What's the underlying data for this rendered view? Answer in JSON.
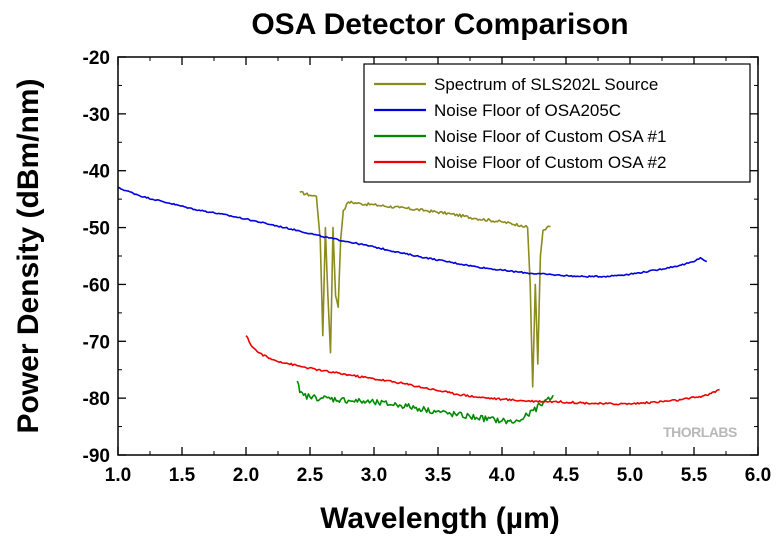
{
  "chart_data": {
    "type": "line",
    "title": "OSA Detector Comparison",
    "xlabel": "Wavelength (µm)",
    "ylabel": "Power Density (dBm/nm)",
    "xlim": [
      1.0,
      6.0
    ],
    "ylim": [
      -90,
      -20
    ],
    "xticks": [
      "1.0",
      "1.5",
      "2.0",
      "2.5",
      "3.0",
      "3.5",
      "4.0",
      "4.5",
      "5.0",
      "5.5",
      "6.0"
    ],
    "yticks": [
      "-20",
      "-30",
      "-40",
      "-50",
      "-60",
      "-70",
      "-80",
      "-90"
    ],
    "grid": false,
    "legend_position": "top-right",
    "watermark": "THORLABS",
    "series": [
      {
        "name": "Spectrum of SLS202L Source",
        "color": "#8b8b1e",
        "x": [
          2.42,
          2.5,
          2.55,
          2.58,
          2.6,
          2.62,
          2.64,
          2.66,
          2.68,
          2.7,
          2.72,
          2.74,
          2.76,
          2.8,
          2.9,
          3.0,
          3.2,
          3.4,
          3.6,
          3.8,
          4.0,
          4.15,
          4.2,
          4.22,
          4.24,
          4.26,
          4.28,
          4.3,
          4.32,
          4.35,
          4.38
        ],
        "y": [
          -43.8,
          -44.3,
          -44.5,
          -52,
          -69,
          -50,
          -62,
          -72,
          -50,
          -62,
          -64,
          -52,
          -47,
          -45.5,
          -45.8,
          -46,
          -46.5,
          -47,
          -47.6,
          -48.4,
          -49,
          -49.6,
          -50,
          -60,
          -78,
          -60,
          -74,
          -55,
          -50.5,
          -50,
          -49.8
        ]
      },
      {
        "name": "Noise Floor of OSA205C",
        "color": "#0000e0",
        "x": [
          1.0,
          1.2,
          1.4,
          1.6,
          1.8,
          2.0,
          2.2,
          2.4,
          2.6,
          2.8,
          3.0,
          3.2,
          3.4,
          3.6,
          3.8,
          4.0,
          4.2,
          4.4,
          4.6,
          4.8,
          5.0,
          5.2,
          5.4,
          5.5,
          5.55,
          5.6
        ],
        "y": [
          -43,
          -44.6,
          -45.7,
          -46.8,
          -47.6,
          -48.5,
          -49.5,
          -50.5,
          -51.6,
          -52.5,
          -53.4,
          -54.4,
          -55.3,
          -56.1,
          -56.9,
          -57.5,
          -58.0,
          -58.3,
          -58.6,
          -58.6,
          -58.2,
          -57.5,
          -56.6,
          -56.0,
          -55.3,
          -56.0
        ]
      },
      {
        "name": "Noise Floor of Custom OSA #1",
        "color": "#008a00",
        "x": [
          2.4,
          2.42,
          2.45,
          2.5,
          2.6,
          2.8,
          3.0,
          3.2,
          3.4,
          3.6,
          3.8,
          4.0,
          4.1,
          4.15,
          4.2,
          4.3,
          4.35,
          4.4
        ],
        "y": [
          -77,
          -79,
          -79.5,
          -79.8,
          -80,
          -80.4,
          -80.8,
          -81.2,
          -82,
          -82.8,
          -83.4,
          -84,
          -84.2,
          -83.8,
          -83,
          -81.2,
          -80.2,
          -79.5
        ]
      },
      {
        "name": "Noise Floor of Custom OSA #2",
        "color": "#ee0000",
        "x": [
          2.0,
          2.05,
          2.1,
          2.2,
          2.4,
          2.6,
          2.8,
          3.0,
          3.2,
          3.4,
          3.6,
          3.8,
          4.0,
          4.2,
          4.4,
          4.6,
          4.8,
          5.0,
          5.2,
          5.4,
          5.6,
          5.7
        ],
        "y": [
          -69,
          -71,
          -72,
          -73.2,
          -74.3,
          -75.2,
          -75.9,
          -76.6,
          -77.3,
          -78.2,
          -79.1,
          -79.8,
          -80.2,
          -80.5,
          -80.6,
          -80.8,
          -81.0,
          -81.0,
          -80.7,
          -80.3,
          -79.5,
          -78.5
        ]
      }
    ]
  }
}
